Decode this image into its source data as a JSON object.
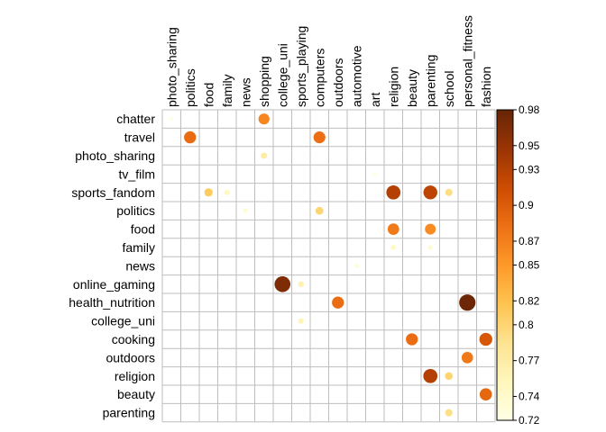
{
  "chart_data": {
    "type": "heatmap",
    "title": "",
    "xlabel": "",
    "ylabel": "",
    "columns": [
      "photo_sharing",
      "politics",
      "food",
      "family",
      "news",
      "shopping",
      "college_uni",
      "sports_playing",
      "computers",
      "outdoors",
      "automotive",
      "art",
      "religion",
      "beauty",
      "parenting",
      "school",
      "personal_fitness",
      "fashion"
    ],
    "rows": [
      "chatter",
      "travel",
      "photo_sharing",
      "tv_film",
      "sports_fandom",
      "politics",
      "food",
      "family",
      "news",
      "online_gaming",
      "health_nutrition",
      "college_uni",
      "cooking",
      "outdoors",
      "religion",
      "beauty",
      "parenting"
    ],
    "cells": [
      {
        "row": "chatter",
        "col": "photo_sharing",
        "value": 0.722
      },
      {
        "row": "chatter",
        "col": "shopping",
        "value": 0.865
      },
      {
        "row": "travel",
        "col": "politics",
        "value": 0.886
      },
      {
        "row": "travel",
        "col": "computers",
        "value": 0.883
      },
      {
        "row": "photo_sharing",
        "col": "shopping",
        "value": 0.77
      },
      {
        "row": "tv_film",
        "col": "art",
        "value": 0.72
      },
      {
        "row": "sports_fandom",
        "col": "food",
        "value": 0.81
      },
      {
        "row": "sports_fandom",
        "col": "family",
        "value": 0.75
      },
      {
        "row": "sports_fandom",
        "col": "religion",
        "value": 0.93
      },
      {
        "row": "sports_fandom",
        "col": "parenting",
        "value": 0.925
      },
      {
        "row": "sports_fandom",
        "col": "school",
        "value": 0.79
      },
      {
        "row": "politics",
        "col": "news",
        "value": 0.735
      },
      {
        "row": "politics",
        "col": "computers",
        "value": 0.8
      },
      {
        "row": "food",
        "col": "religion",
        "value": 0.875
      },
      {
        "row": "food",
        "col": "parenting",
        "value": 0.86
      },
      {
        "row": "family",
        "col": "religion",
        "value": 0.745
      },
      {
        "row": "family",
        "col": "parenting",
        "value": 0.735
      },
      {
        "row": "news",
        "col": "automotive",
        "value": 0.73
      },
      {
        "row": "online_gaming",
        "col": "college_uni",
        "value": 0.965
      },
      {
        "row": "online_gaming",
        "col": "sports_playing",
        "value": 0.76
      },
      {
        "row": "health_nutrition",
        "col": "outdoors",
        "value": 0.885
      },
      {
        "row": "health_nutrition",
        "col": "personal_fitness",
        "value": 0.975
      },
      {
        "row": "college_uni",
        "col": "sports_playing",
        "value": 0.755
      },
      {
        "row": "cooking",
        "col": "beauty",
        "value": 0.885
      },
      {
        "row": "cooking",
        "col": "fashion",
        "value": 0.905
      },
      {
        "row": "outdoors",
        "col": "personal_fitness",
        "value": 0.875
      },
      {
        "row": "religion",
        "col": "parenting",
        "value": 0.93
      },
      {
        "row": "religion",
        "col": "school",
        "value": 0.8
      },
      {
        "row": "beauty",
        "col": "fashion",
        "value": 0.89
      },
      {
        "row": "parenting",
        "col": "school",
        "value": 0.79
      }
    ],
    "colorbar": {
      "min": 0.72,
      "max": 0.98,
      "ticks": [
        "0.72",
        "0.74",
        "0.77",
        "0.8",
        "0.82",
        "0.85",
        "0.87",
        "0.9",
        "0.93",
        "0.95",
        "0.98"
      ],
      "colors": [
        "#ffffe5",
        "#fff7bc",
        "#fee391",
        "#fec44f",
        "#fe9929",
        "#ec7014",
        "#cc4c02",
        "#993404",
        "#662506"
      ]
    },
    "grid": true,
    "legend": "right"
  }
}
